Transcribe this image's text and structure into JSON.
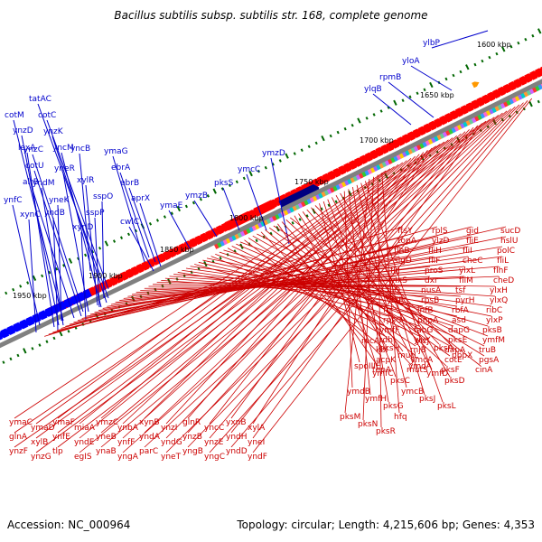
{
  "title": "Bacillus subtilis subsp. subtilis str. 168, complete genome",
  "footer": {
    "accession": "Accession: NC_000964",
    "summary": "Topology: circular; Length: 4,215,606 bp; Genes: 4,353"
  },
  "colors": {
    "backbone": "#808080",
    "forward_genes": "#ff0000",
    "reverse_genes": "#0000ff",
    "tick": "#006600",
    "label_top": "#0000cc",
    "label_bottom": "#cc0000",
    "rrna_block": "#000080",
    "orange_feature": "#ff9900"
  },
  "scale_labels": [
    {
      "label": "1600 kbp"
    },
    {
      "label": "1650 kbp"
    },
    {
      "label": "1700 kbp"
    },
    {
      "label": "1750 kbp"
    },
    {
      "label": "1800 kbp"
    },
    {
      "label": "1850 kbp"
    },
    {
      "label": "1900 kbp"
    },
    {
      "label": "1950 kbp"
    }
  ],
  "genes_top": [
    "ylbP",
    "yloA",
    "rpmB",
    "ylqB",
    "ymzD",
    "ymcC",
    "pksS",
    "ymzB",
    "ymaE",
    "ymaG",
    "ebrA",
    "ebrB",
    "aprX",
    "cwlC",
    "tatAC",
    "cotC",
    "ynzK",
    "yncM",
    "ynzC",
    "cotU",
    "alrB",
    "yncB",
    "xylR",
    "yneR",
    "sspO",
    "sspP",
    "cotM",
    "ynzD",
    "lexA",
    "yndM",
    "yneK",
    "yndB",
    "xynD",
    "ynfC",
    "xynC"
  ],
  "genes_bottom": [
    "ftsY",
    "rplS",
    "gid",
    "sucD",
    "topA",
    "ylzD",
    "fliE",
    "hslU",
    "flhB",
    "fliH",
    "fliI",
    "polC",
    "sigD",
    "fliF",
    "cheC",
    "fliL",
    "fliJ",
    "proS",
    "ylxL",
    "flhF",
    "ylxS",
    "dxr",
    "fliM",
    "cheD",
    "fliQ",
    "nusA",
    "tsf",
    "ylxH",
    "ylxR",
    "rpsB",
    "pyrH",
    "ylxQ",
    "frr",
    "infB",
    "rbfA",
    "ribC",
    "rpsO",
    "pnpA",
    "asd",
    "ylxP",
    "ymfF",
    "fabG",
    "dapG",
    "pksB",
    "tdh",
    "ylxY",
    "pksE",
    "ymfM",
    "kbl",
    "rnjB",
    "dapA",
    "truB",
    "acpK",
    "ymcA",
    "cotE",
    "pgsA",
    "tepA",
    "mutS",
    "pksF",
    "cinA",
    "recA",
    "pksH",
    "mutL",
    "ylzJ",
    "pksA",
    "pbpX",
    "spoIIIE",
    "ymfC",
    "pksC",
    "ymdA",
    "ymfD",
    "pksD",
    "ymdB",
    "ymfH",
    "pksG",
    "ymcB",
    "pksJ",
    "pksL",
    "pksM",
    "pksN",
    "pksR",
    "hfq",
    "ymaC",
    "ymaD",
    "ymaF",
    "miaA",
    "ymzC",
    "ynbA",
    "xynB",
    "ynzI",
    "glnR",
    "yncC",
    "yxnB",
    "xylA",
    "glnA",
    "xylB",
    "ynfE",
    "yndE",
    "yneB",
    "ynfF",
    "yndA",
    "yndG",
    "ynzB",
    "ynzE",
    "yndH",
    "yneI",
    "ynzF",
    "ynzG",
    "tlp",
    "egIS",
    "ynaB",
    "yngA",
    "parC",
    "yneT",
    "yngB",
    "yngC",
    "yndD",
    "yndF"
  ]
}
